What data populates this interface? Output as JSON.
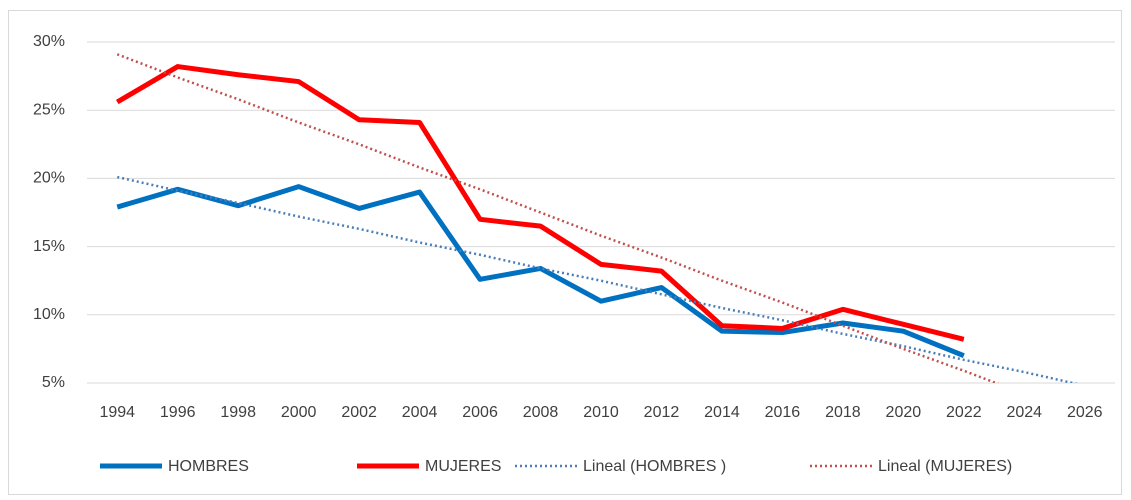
{
  "chart_data": {
    "type": "line",
    "categories": [
      "1994",
      "1996",
      "1998",
      "2000",
      "2002",
      "2004",
      "2006",
      "2008",
      "2010",
      "2012",
      "2014",
      "2016",
      "2018",
      "2020",
      "2022",
      "2024",
      "2026"
    ],
    "series": [
      {
        "name": "HOMBRES",
        "color": "#0070c0",
        "dotted": false,
        "values": [
          17.9,
          19.2,
          18.0,
          19.4,
          17.8,
          19.0,
          12.6,
          13.4,
          11.0,
          12.0,
          8.8,
          8.7,
          9.4,
          8.8,
          7.0,
          null,
          null
        ]
      },
      {
        "name": "MUJERES",
        "color": "#ff0000",
        "dotted": false,
        "values": [
          25.6,
          28.2,
          27.6,
          27.1,
          24.3,
          24.1,
          17.0,
          16.5,
          13.7,
          13.2,
          9.2,
          9.0,
          10.4,
          9.3,
          8.2,
          null,
          null
        ]
      },
      {
        "name": "Lineal (HOMBRES )",
        "color": "#4a7ebb",
        "dotted": true,
        "values": [
          20.1,
          19.1,
          18.2,
          17.2,
          16.3,
          15.3,
          14.4,
          13.4,
          12.5,
          11.5,
          10.5,
          9.6,
          8.6,
          7.7,
          6.7,
          5.8,
          4.8
        ]
      },
      {
        "name": "Lineal (MUJERES)",
        "color": "#c0504d",
        "dotted": true,
        "values": [
          29.1,
          27.4,
          25.8,
          24.1,
          22.5,
          20.8,
          19.2,
          17.5,
          15.8,
          14.2,
          12.5,
          10.9,
          9.2,
          7.5,
          5.9,
          4.2,
          null
        ]
      }
    ],
    "ylim": [
      5,
      30
    ],
    "yticks": [
      {
        "value": 5,
        "label": "5%"
      },
      {
        "value": 10,
        "label": "10%"
      },
      {
        "value": 15,
        "label": "15%"
      },
      {
        "value": 20,
        "label": "20%"
      },
      {
        "value": 25,
        "label": "25%"
      },
      {
        "value": 30,
        "label": "30%"
      }
    ],
    "grid": true,
    "legend": "bottom"
  }
}
